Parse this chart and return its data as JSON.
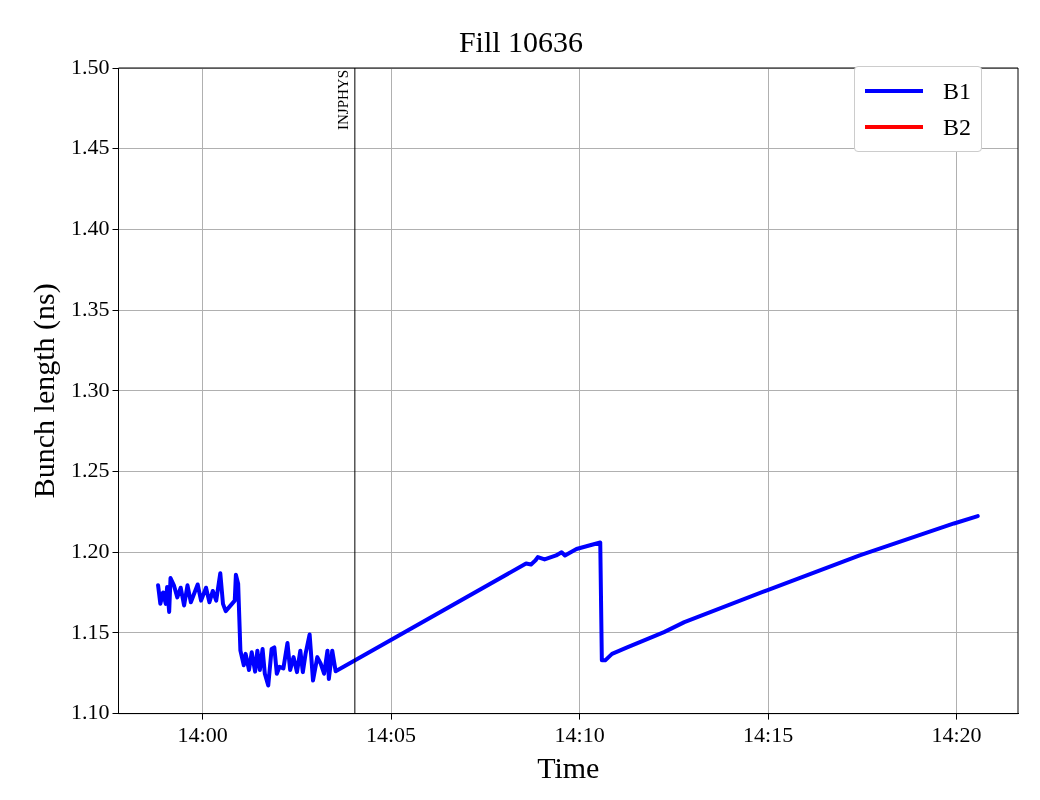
{
  "chart_data": {
    "type": "line",
    "title": "Fill 10636",
    "xlabel": "Time",
    "ylabel": "Bunch length (ns)",
    "xlim": [
      13.9628,
      14.3605
    ],
    "xticks": [
      {
        "value": 14,
        "label": "14:00"
      },
      {
        "value": 14.0833,
        "label": "14:05"
      },
      {
        "value": 14.1667,
        "label": "14:10"
      },
      {
        "value": 14.25,
        "label": "14:15"
      },
      {
        "value": 14.3333,
        "label": "14:20"
      }
    ],
    "ylim": [
      1.1,
      1.5
    ],
    "yticks": [
      {
        "value": 1.1,
        "label": "1.10"
      },
      1.15,
      {
        "value": 1.2,
        "label": "1.20"
      },
      1.25,
      {
        "value": 1.3,
        "label": "1.30"
      },
      1.35,
      {
        "value": 1.4,
        "label": "1.40"
      },
      1.45,
      {
        "value": 1.5,
        "label": "1.50"
      }
    ],
    "grid": true,
    "legend": "top right",
    "marker": "none",
    "line_style": "solid",
    "ref_lines": [
      {
        "axis": "x",
        "value": 14.0673,
        "label": "INJPHYS",
        "color": "#000000"
      }
    ],
    "series": [
      {
        "name": "B1",
        "color": "#0000ff",
        "x": [
          13.9803,
          13.9813,
          13.9825,
          13.9837,
          13.9843,
          13.9852,
          13.9858,
          13.9873,
          13.9888,
          13.9903,
          13.9918,
          13.9933,
          13.9948,
          13.9978,
          13.9993,
          14.0015,
          14.003,
          14.0045,
          14.006,
          14.0078,
          14.009,
          14.0102,
          14.0142,
          14.0147,
          14.0157,
          14.0167,
          14.0182,
          14.019,
          14.0205,
          14.0217,
          14.0232,
          14.0242,
          14.0253,
          14.0265,
          14.0275,
          14.029,
          14.0305,
          14.0317,
          14.0328,
          14.034,
          14.0357,
          14.0375,
          14.0387,
          14.0402,
          14.0417,
          14.0432,
          14.0443,
          14.0455,
          14.0473,
          14.0488,
          14.0507,
          14.0522,
          14.0537,
          14.0552,
          14.0558,
          14.0573,
          14.0588,
          14.143,
          14.1452,
          14.1472,
          14.1482,
          14.1512,
          14.1563,
          14.1587,
          14.1602,
          14.1653,
          14.1713,
          14.1758,
          14.1765,
          14.178,
          14.181,
          14.1877,
          14.204,
          14.213,
          14.2495,
          14.2905,
          14.3322,
          14.3427
        ],
        "values": [
          1.1795,
          1.168,
          1.175,
          1.168,
          1.1785,
          1.163,
          1.184,
          1.1795,
          1.172,
          1.178,
          1.167,
          1.1795,
          1.169,
          1.18,
          1.17,
          1.178,
          1.169,
          1.176,
          1.17,
          1.187,
          1.168,
          1.1635,
          1.17,
          1.186,
          1.1805,
          1.139,
          1.13,
          1.137,
          1.127,
          1.138,
          1.126,
          1.139,
          1.127,
          1.14,
          1.1247,
          1.1174,
          1.14,
          1.141,
          1.1247,
          1.129,
          1.128,
          1.1437,
          1.127,
          1.135,
          1.1257,
          1.139,
          1.1257,
          1.137,
          1.149,
          1.1205,
          1.135,
          1.131,
          1.1247,
          1.139,
          1.1215,
          1.139,
          1.1263,
          1.193,
          1.1924,
          1.195,
          1.197,
          1.1955,
          1.198,
          1.2,
          1.198,
          1.202,
          1.2043,
          1.206,
          1.133,
          1.133,
          1.137,
          1.141,
          1.1505,
          1.1567,
          1.1764,
          1.198,
          1.2178,
          1.2224
        ]
      },
      {
        "name": "B2",
        "color": "#ff0000"
      }
    ]
  }
}
